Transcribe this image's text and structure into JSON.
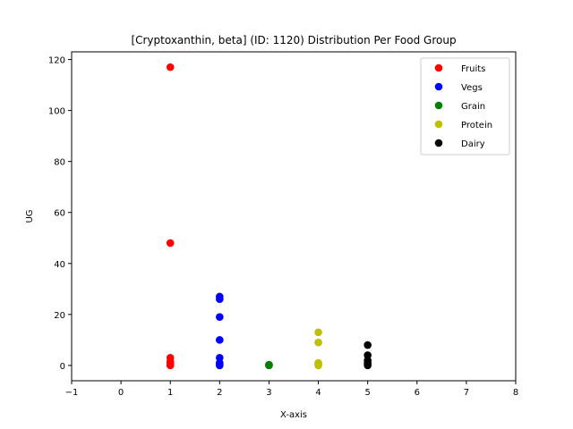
{
  "chart_data": {
    "type": "scatter",
    "title": "[Cryptoxanthin, beta] (ID: 1120) Distribution Per Food Group",
    "xlabel": "X-axis",
    "ylabel": "UG",
    "xlim": [
      -1,
      8
    ],
    "ylim": [
      -6,
      123
    ],
    "x_ticks": [
      -1,
      0,
      1,
      2,
      3,
      4,
      5,
      6,
      7,
      8
    ],
    "y_ticks": [
      0,
      20,
      40,
      60,
      80,
      100,
      120
    ],
    "grid": false,
    "legend_position": "top-right",
    "series": [
      {
        "name": "Fruits",
        "color": "#ff0000",
        "points": [
          [
            1,
            117
          ],
          [
            1,
            48
          ],
          [
            1,
            3
          ],
          [
            1,
            1.5
          ],
          [
            1,
            0.5
          ],
          [
            1,
            0.2
          ],
          [
            1,
            0
          ]
        ]
      },
      {
        "name": "Vegs",
        "color": "#0000ff",
        "points": [
          [
            2,
            27
          ],
          [
            2,
            26
          ],
          [
            2,
            19
          ],
          [
            2,
            10
          ],
          [
            2,
            3
          ],
          [
            2,
            1
          ],
          [
            2,
            0.5
          ],
          [
            2,
            0
          ]
        ]
      },
      {
        "name": "Grain",
        "color": "#008000",
        "points": [
          [
            3,
            0.3
          ],
          [
            3,
            0.1
          ],
          [
            3,
            0
          ]
        ]
      },
      {
        "name": "Protein",
        "color": "#bfbf00",
        "points": [
          [
            4,
            13
          ],
          [
            4,
            9
          ],
          [
            4,
            1
          ],
          [
            4,
            0.5
          ],
          [
            4,
            0
          ]
        ]
      },
      {
        "name": "Dairy",
        "color": "#000000",
        "points": [
          [
            5,
            8
          ],
          [
            5,
            4
          ],
          [
            5,
            2
          ],
          [
            5,
            1
          ],
          [
            5,
            0.5
          ],
          [
            5,
            0
          ]
        ]
      }
    ]
  }
}
